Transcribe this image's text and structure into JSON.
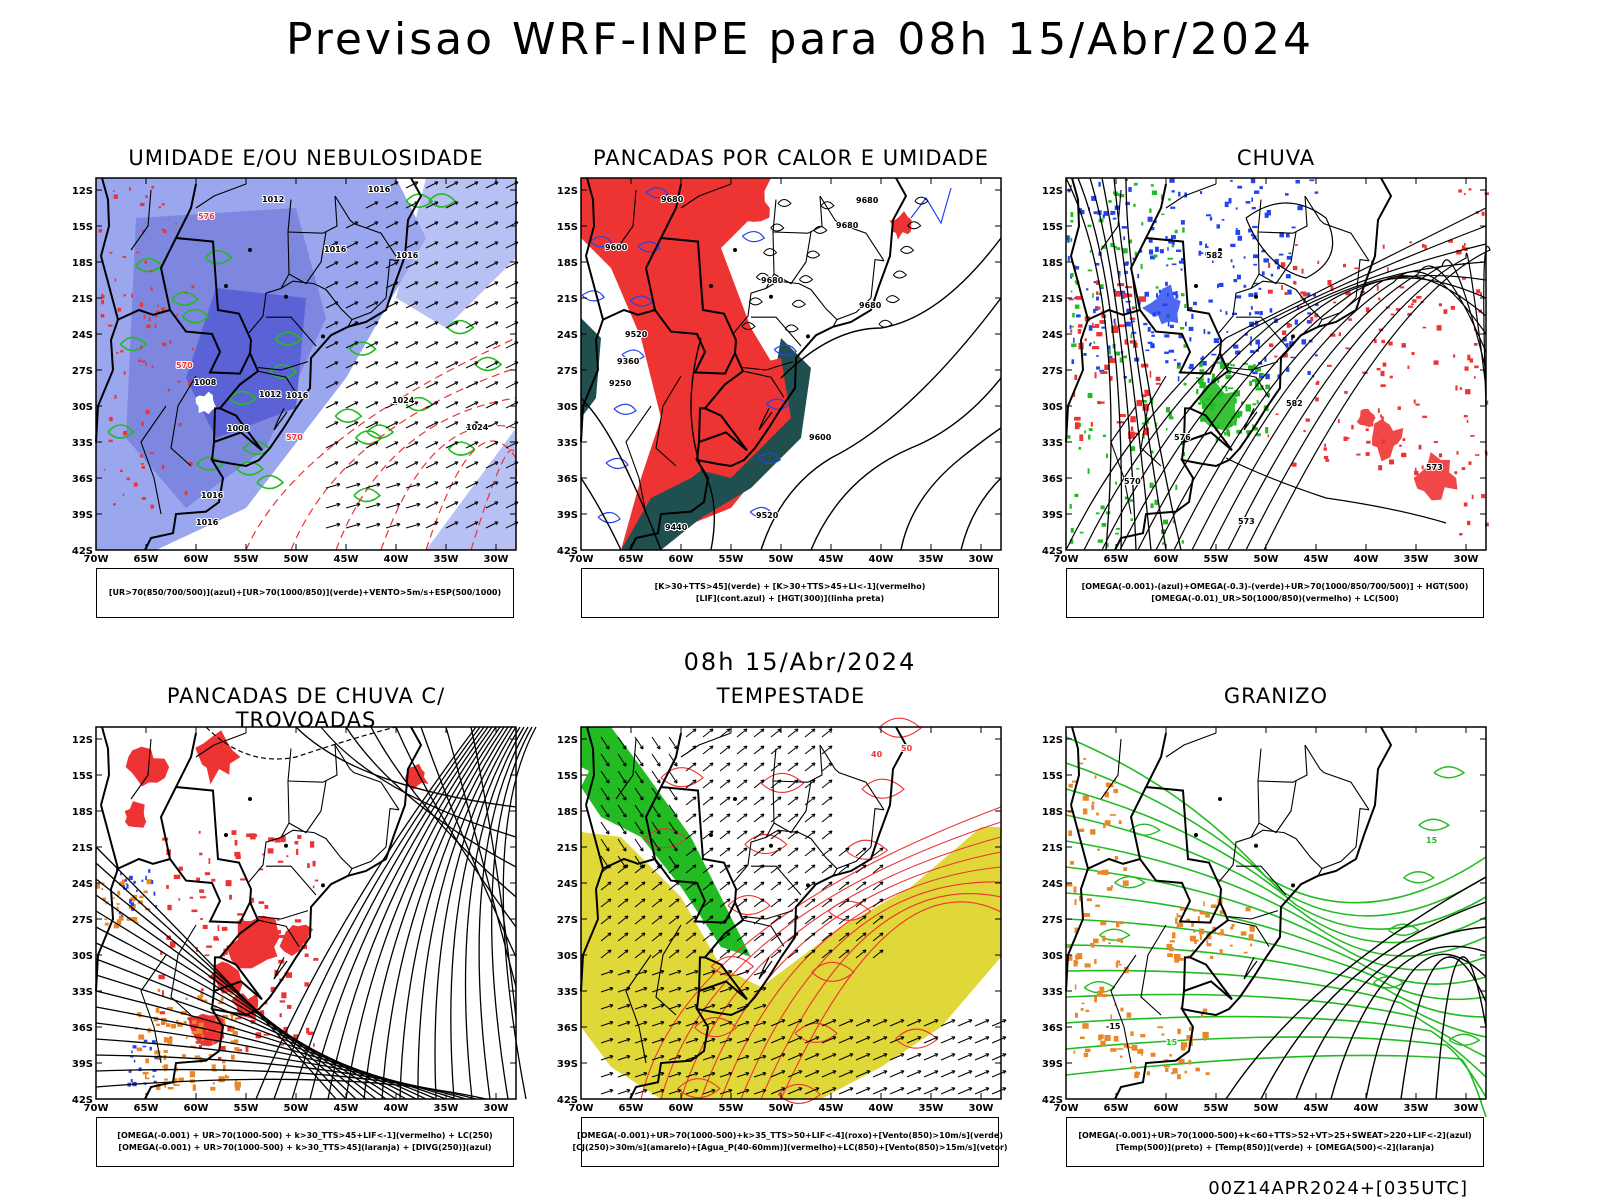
{
  "header": {
    "title": "Previsao WRF-INPE  para 08h 15/Abr/2024",
    "mid_title": "08h 15/Abr/2024",
    "footer": "00Z14APR2024+[035UTC]"
  },
  "axes": {
    "lat_labels": [
      "12S",
      "15S",
      "18S",
      "21S",
      "24S",
      "27S",
      "30S",
      "33S",
      "36S",
      "39S",
      "42S"
    ],
    "lon_labels": [
      "70W",
      "65W",
      "60W",
      "55W",
      "50W",
      "45W",
      "40W",
      "35W",
      "30W"
    ]
  },
  "colors": {
    "red": "#ee3333",
    "green": "#22bb22",
    "blue": "#2244ee",
    "lightblue": "#9aa6ee",
    "darkteal": "#1f4f4f",
    "yellow": "#e0d838",
    "orange": "#e8882a"
  },
  "panels": [
    {
      "title": "UMIDADE E/OU NEBULOSIDADE",
      "legend": [
        "[UR>70(850/700/500)](azul)+[UR>70(1000/850)](verde)+VENTO>5m/s+ESP(500/1000)"
      ],
      "labels": [
        "1012",
        "1016",
        "1008",
        "1024",
        "570",
        "576"
      ]
    },
    {
      "title": "PANCADAS POR CALOR E UMIDADE",
      "legend": [
        "[K>30+TTS>45](verde) + [K>30+TTS>45+LI<-1](vermelho)",
        "[LIF](cont.azul) + [HGT(300)](linha preta)"
      ],
      "labels": [
        "9680",
        "9600",
        "9520",
        "9440",
        "9360",
        "9250"
      ]
    },
    {
      "title": "CHUVA",
      "legend": [
        "[OMEGA(-0.001)-(azul)+OMEGA(-0.3)-(verde)+UR>70(1000/850/700/500)] + HGT(500)",
        "[OMEGA(-0.01)_UR>50(1000/850)(vermelho) + LC(500)"
      ],
      "labels": [
        "576",
        "570",
        "573",
        "582"
      ]
    },
    {
      "title": "PANCADAS DE CHUVA C/ TROVOADAS",
      "legend": [
        "[OMEGA(-0.001) + UR>70(1000-500) + k>30_TTS>45+LIF<-1](vermelho) + LC(250)",
        "[OMEGA(-0.001) + UR>70(1000-500) + k>30_TTS>45](laranja) + [DIVG(250)](azul)"
      ],
      "labels": []
    },
    {
      "title": "TEMPESTADE",
      "legend": [
        "[OMEGA(-0.001)+UR>70(1000-500)+k>35_TTS>50+LIF<-4](roxo)+[Vento(850)>10m/s](verde)",
        "[CJ(250)>30m/s](amarelo)+[Agua_P(40-60mm)](vermelho)+LC(850)+[Vento(850)>15m/s](vetor)"
      ],
      "labels": [
        "40",
        "50"
      ]
    },
    {
      "title": "GRANIZO",
      "legend": [
        "[OMEGA(-0.001)+UR>70(1000-500)+k<60+TTS>52+VT>25+SWEAT>220+LIF<-2](azul)",
        "[Temp(500)](preto) + [Temp(850)](verde) + [OMEGA(500)<-2](laranja)"
      ],
      "labels": [
        "-15",
        "15"
      ]
    }
  ]
}
